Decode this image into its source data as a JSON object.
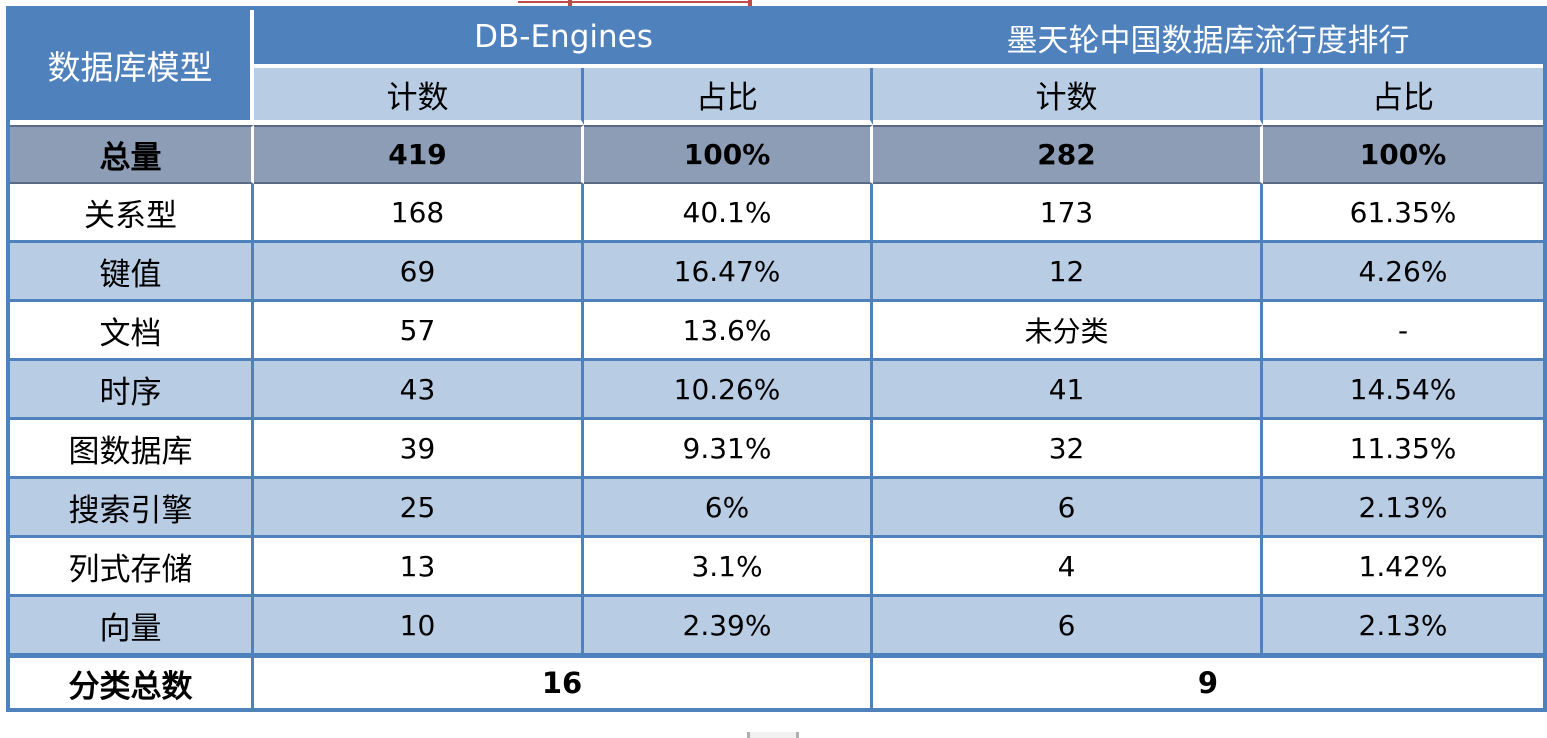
{
  "chart_data": {
    "type": "table",
    "corner_header": "数据库模型",
    "column_groups": [
      {
        "label": "DB-Engines",
        "columns": [
          "计数",
          "占比"
        ]
      },
      {
        "label": "墨天轮中国数据库流行度排行",
        "columns": [
          "计数",
          "占比"
        ]
      }
    ],
    "rows": [
      {
        "label": "总量",
        "cells": [
          "419",
          "100%",
          "282",
          "100%"
        ],
        "emphasis": "total"
      },
      {
        "label": "关系型",
        "cells": [
          "168",
          "40.1%",
          "173",
          "61.35%"
        ]
      },
      {
        "label": "键值",
        "cells": [
          "69",
          "16.47%",
          "12",
          "4.26%"
        ]
      },
      {
        "label": "文档",
        "cells": [
          "57",
          "13.6%",
          "未分类",
          "-"
        ]
      },
      {
        "label": "时序",
        "cells": [
          "43",
          "10.26%",
          "41",
          "14.54%"
        ]
      },
      {
        "label": "图数据库",
        "cells": [
          "39",
          "9.31%",
          "32",
          "11.35%"
        ]
      },
      {
        "label": "搜索引擎",
        "cells": [
          "25",
          "6%",
          "6",
          "2.13%"
        ]
      },
      {
        "label": "列式存储",
        "cells": [
          "13",
          "3.1%",
          "4",
          "1.42%"
        ]
      },
      {
        "label": "向量",
        "cells": [
          "10",
          "2.39%",
          "6",
          "2.13%"
        ]
      }
    ],
    "footer": {
      "label": "分类总数",
      "merged_values": [
        "16",
        "9"
      ]
    }
  },
  "colors": {
    "header_bg": "#4f81bd",
    "subheader_bg": "#b8cce4",
    "total_row_bg": "#8c9db5",
    "alt_row_bg": "#b8cce4",
    "border_blue": "#4f81bd",
    "total_border": "#5a6a84",
    "artifact_red": "#bf4b4b"
  }
}
